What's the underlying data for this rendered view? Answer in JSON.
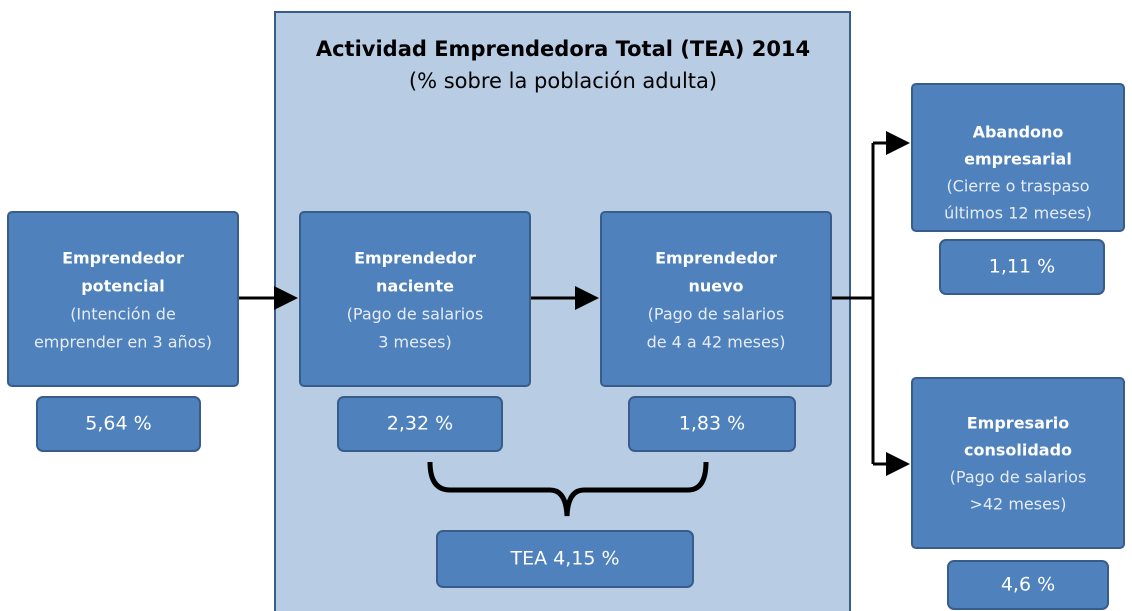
{
  "title": "Actividad Emprendedora Total (TEA) 2014",
  "subtitle": "(% sobre la población adulta)",
  "nodes": [
    {
      "title": [
        "Emprendedor",
        "potencial"
      ],
      "description": [
        "(Intención de",
        "emprender en 3 años)"
      ],
      "value": "5,64 %"
    },
    {
      "title": [
        "Emprendedor",
        "naciente"
      ],
      "description": [
        "(Pago de salarios",
        "3 meses)"
      ],
      "value": "2,32 %"
    },
    {
      "title": [
        "Emprendedor",
        "nuevo"
      ],
      "description": [
        "(Pago de salarios",
        "de 4 a 42 meses)"
      ],
      "value": "1,83 %"
    },
    {
      "title": [
        "Abandono",
        "empresarial"
      ],
      "description": [
        "(Cierre o traspaso",
        "últimos 12 meses)"
      ],
      "value": "1,11 %"
    },
    {
      "title": [
        "Empresario",
        "consolidado"
      ],
      "description": [
        "(Pago de salarios",
        ">42 meses)"
      ],
      "value": "4,6 %"
    }
  ],
  "total": "TEA 4,15 %"
}
